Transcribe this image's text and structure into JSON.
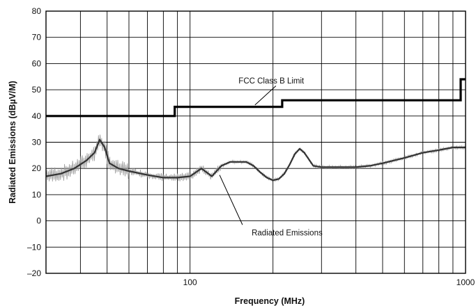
{
  "chart_data": {
    "type": "line",
    "title": "",
    "xlabel": "Frequency (MHz)",
    "ylabel": "Radiated Emissions (dBµV/M)",
    "xscale": "log",
    "xlim": [
      30,
      1000
    ],
    "ylim": [
      -20,
      80
    ],
    "xtick_labels": [
      "100",
      "1000"
    ],
    "yticks": [
      -20,
      -10,
      0,
      10,
      20,
      30,
      40,
      50,
      60,
      70,
      80
    ],
    "ytick_labels": [
      "–20",
      "–10",
      "0",
      "10",
      "20",
      "30",
      "40",
      "50",
      "60",
      "70",
      "80"
    ],
    "grid": true,
    "series": [
      {
        "name": "FCC Class B Limit",
        "color": "#000000",
        "step": true,
        "x": [
          30,
          88,
          88,
          216,
          216,
          960,
          960,
          1000
        ],
        "y": [
          40,
          40,
          43.5,
          43.5,
          46,
          46,
          54,
          54
        ]
      },
      {
        "name": "Radiated Emissions",
        "color": "#555555",
        "noisy": true,
        "x": [
          30,
          34,
          38,
          42,
          45,
          47,
          49,
          51,
          55,
          60,
          70,
          80,
          90,
          100,
          110,
          120,
          130,
          140,
          150,
          160,
          170,
          180,
          190,
          200,
          210,
          220,
          230,
          240,
          250,
          260,
          280,
          300,
          350,
          400,
          450,
          500,
          600,
          700,
          800,
          900,
          1000
        ],
        "y": [
          17,
          18,
          20,
          23,
          26,
          31,
          28,
          22,
          20,
          19,
          17.5,
          16.5,
          16.5,
          17,
          20,
          17,
          21,
          22.5,
          22.5,
          22.5,
          21,
          18.5,
          16.5,
          15.5,
          16,
          18,
          21.5,
          25.5,
          27.5,
          26,
          21,
          20.5,
          20.5,
          20.5,
          21,
          22,
          24,
          26,
          27,
          28,
          28
        ]
      }
    ],
    "annotations": [
      {
        "text": "FCC Class B Limit",
        "x": 150,
        "y": 53.5
      },
      {
        "text": "Radiated Emissions",
        "x": 225,
        "y": -4.5
      }
    ]
  }
}
